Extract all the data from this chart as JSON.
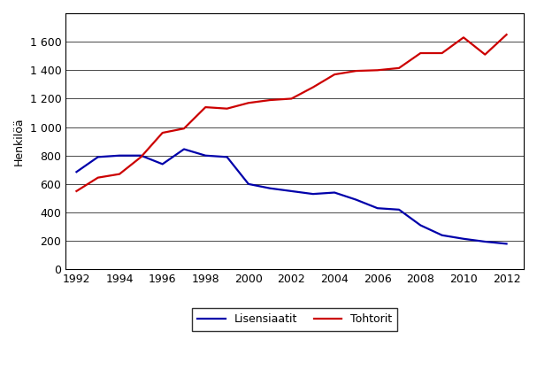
{
  "years": [
    1992,
    1993,
    1994,
    1995,
    1996,
    1997,
    1998,
    1999,
    2000,
    2001,
    2002,
    2003,
    2004,
    2005,
    2006,
    2007,
    2008,
    2009,
    2010,
    2011,
    2012
  ],
  "lisensiaatit": [
    685,
    790,
    800,
    800,
    740,
    845,
    800,
    790,
    600,
    570,
    550,
    530,
    540,
    490,
    430,
    420,
    310,
    240,
    215,
    195,
    180
  ],
  "tohtorit": [
    550,
    645,
    670,
    790,
    960,
    990,
    1140,
    1130,
    1170,
    1190,
    1200,
    1280,
    1370,
    1395,
    1400,
    1415,
    1520,
    1520,
    1630,
    1510,
    1650
  ],
  "lisensiaatit_color": "#0000aa",
  "tohtorit_color": "#cc0000",
  "ylabel": "Henkilöä",
  "ylim": [
    0,
    1800
  ],
  "yticks": [
    0,
    200,
    400,
    600,
    800,
    1000,
    1200,
    1400,
    1600
  ],
  "ytick_labels": [
    "0",
    "200",
    "400",
    "600",
    "800",
    "1 000",
    "1 200",
    "1 400",
    "1 600"
  ],
  "xlim": [
    1991.5,
    2012.8
  ],
  "xticks": [
    1992,
    1994,
    1996,
    1998,
    2000,
    2002,
    2004,
    2006,
    2008,
    2010,
    2012
  ],
  "legend_labels": [
    "Lisensiaatit",
    "Tohtorit"
  ],
  "line_width": 1.6,
  "background_color": "#ffffff",
  "grid_color": "#000000",
  "spine_color": "#000000"
}
